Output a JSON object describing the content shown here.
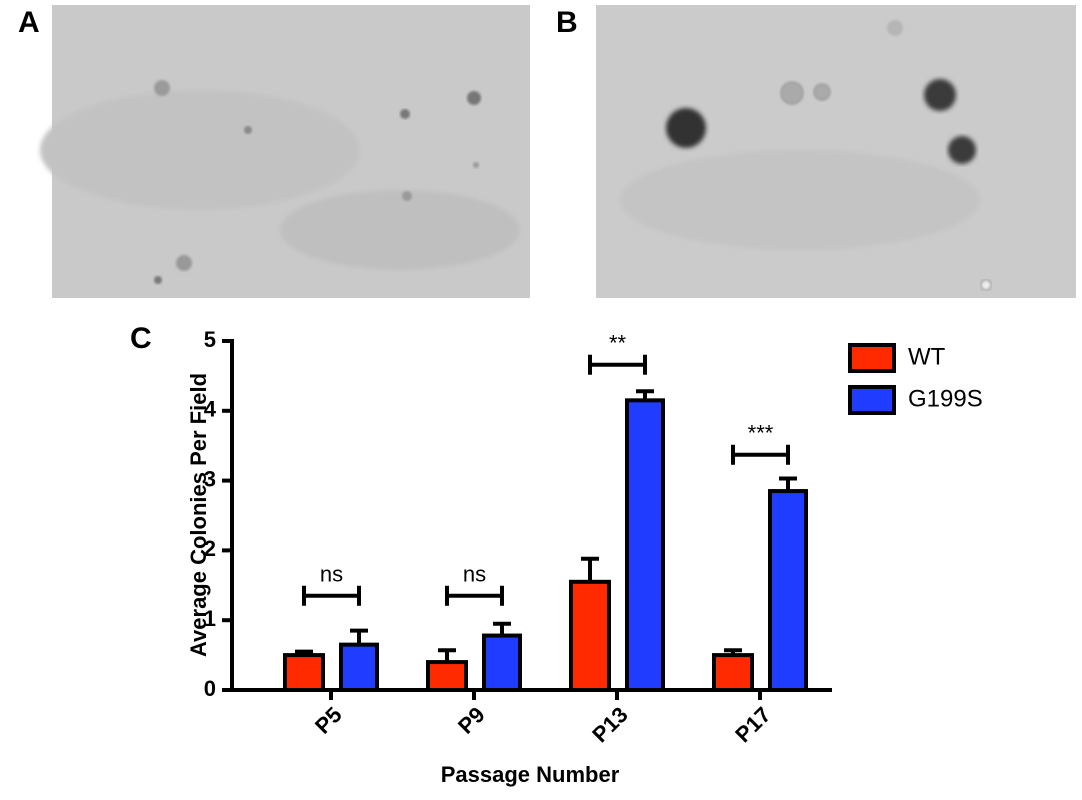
{
  "panels": [
    "A",
    "B"
  ],
  "chart_data": {
    "type": "bar",
    "panel_label": "C",
    "y_label": "Average Colonies Per Field",
    "x_label": "Passage Number",
    "categories": [
      "P5",
      "P9",
      "P13",
      "P17"
    ],
    "series": [
      {
        "name": "WT",
        "color": "#ff2a00",
        "values": [
          0.5,
          0.4,
          1.55,
          0.5
        ],
        "errors": [
          0.05,
          0.17,
          0.33,
          0.07
        ]
      },
      {
        "name": "G199S",
        "color": "#1f3cff",
        "values": [
          0.65,
          0.78,
          4.15,
          2.85
        ],
        "errors": [
          0.2,
          0.17,
          0.13,
          0.18
        ]
      }
    ],
    "annotations": [
      {
        "text": "ns",
        "y": 1.35
      },
      {
        "text": "ns",
        "y": 1.35
      },
      {
        "text": "**",
        "y": 4.66
      },
      {
        "text": "***",
        "y": 3.37
      }
    ],
    "ylim": [
      0,
      5
    ],
    "yticks": [
      0,
      1,
      2,
      3,
      4,
      5
    ],
    "legend": "upper right"
  }
}
